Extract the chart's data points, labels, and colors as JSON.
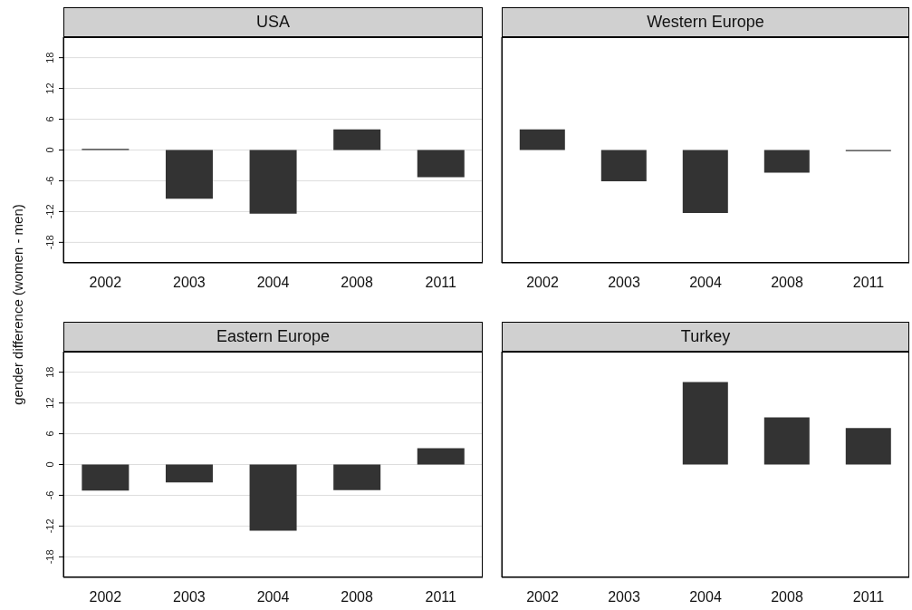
{
  "chart_data": [
    {
      "type": "bar",
      "title": "USA",
      "ylabel": "gender difference (women - men)",
      "categories": [
        "2002",
        "2003",
        "2004",
        "2008",
        "2011"
      ],
      "values": [
        0.2,
        -9.5,
        -12.4,
        4.0,
        -5.3
      ],
      "color": "#333333",
      "ylim": [
        -22,
        22
      ],
      "yticks": [
        -18,
        -12,
        -6,
        0,
        6,
        12,
        18
      ],
      "grid": "y"
    },
    {
      "type": "bar",
      "title": "Western Europe",
      "categories": [
        "2002",
        "2003",
        "2004",
        "2008",
        "2011"
      ],
      "values": [
        4.0,
        -6.1,
        -12.3,
        -4.4,
        -0.2
      ],
      "color": "#333333",
      "ylim": [
        -22,
        22
      ],
      "yticks": [
        -18,
        -12,
        -6,
        0,
        6,
        12,
        18
      ],
      "grid": "y",
      "tick_labels": "x"
    },
    {
      "type": "bar",
      "title": "Eastern Europe",
      "categories": [
        "2002",
        "2003",
        "2004",
        "2008",
        "2011"
      ],
      "values": [
        -5.1,
        -3.5,
        -12.9,
        -5.0,
        3.2
      ],
      "color": "#333333",
      "ylim": [
        -22,
        22
      ],
      "yticks": [
        -18,
        -12,
        -6,
        0,
        6,
        12,
        18
      ],
      "grid": "y"
    },
    {
      "type": "bar",
      "title": "Turkey",
      "categories": [
        "2002",
        "2003",
        "2004",
        "2008",
        "2011"
      ],
      "values": [
        null,
        null,
        16.1,
        9.2,
        7.1
      ],
      "color": "#333333",
      "ylim": [
        -22,
        22
      ],
      "yticks": [
        -18,
        -12,
        -6,
        0,
        6,
        12,
        18
      ],
      "grid": "y",
      "tick_labels": "x"
    }
  ]
}
